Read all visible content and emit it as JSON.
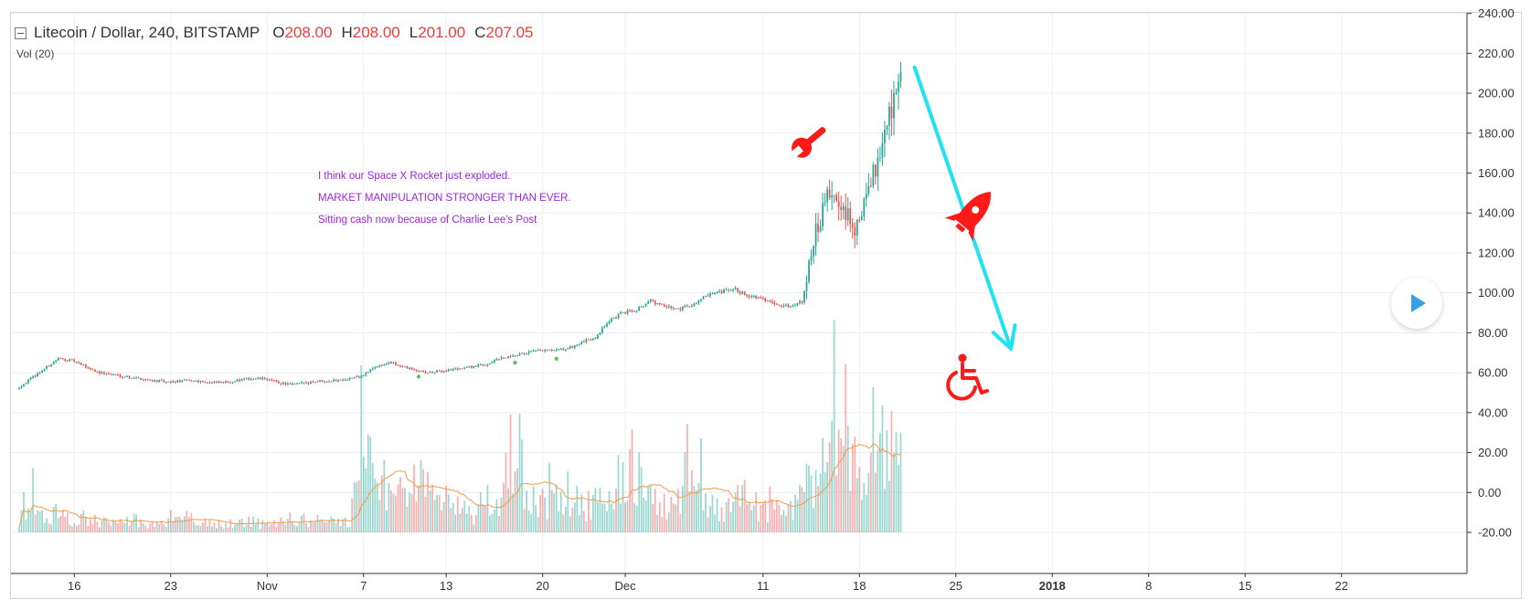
{
  "legend": {
    "symbol": "Litecoin / Dollar, 240, BITSTAMP",
    "open_label": "O",
    "open": "208.00",
    "high_label": "H",
    "high": "208.00",
    "low_label": "L",
    "low": "201.00",
    "close_label": "C",
    "close": "207.05",
    "volume_study": "Vol (20)"
  },
  "notes": [
    "I think our Space X Rocket just exploded.",
    "MARKET MANIPULATION STRONGER THAN EVER.",
    "Sitting cash now because of Charlie Lee's Post"
  ],
  "colors": {
    "up": "#26a69a",
    "down": "#ef5350",
    "arrow": "#1fe3f0",
    "icon": "#ff1a1a",
    "note": "#9c27d6"
  },
  "icons": [
    "wrench-icon",
    "rocket-icon",
    "wheelchair-icon",
    "play-icon"
  ],
  "chart_data": {
    "type": "candlestick",
    "y_ticks": [
      "240.00",
      "220.00",
      "200.00",
      "180.00",
      "160.00",
      "140.00",
      "120.00",
      "100.00",
      "80.00",
      "60.00",
      "40.00",
      "20.00",
      "0.00",
      "-20.00"
    ],
    "y_range": [
      -20,
      240
    ],
    "x_ticks": [
      {
        "label": "16",
        "t": 5
      },
      {
        "label": "23",
        "t": 12
      },
      {
        "label": "Nov",
        "t": 19
      },
      {
        "label": "7",
        "t": 26
      },
      {
        "label": "13",
        "t": 32
      },
      {
        "label": "20",
        "t": 39
      },
      {
        "label": "Dec",
        "t": 45
      },
      {
        "label": "11",
        "t": 55
      },
      {
        "label": "18",
        "t": 62
      },
      {
        "label": "25",
        "t": 69
      },
      {
        "label": "2018",
        "t": 76
      },
      {
        "label": "8",
        "t": 83
      },
      {
        "label": "15",
        "t": 90
      },
      {
        "label": "22",
        "t": 97
      }
    ],
    "x_range": [
      1,
      104
    ],
    "price_path": [
      [
        1,
        52
      ],
      [
        2,
        57
      ],
      [
        3,
        62
      ],
      [
        4,
        67
      ],
      [
        5,
        66
      ],
      [
        6,
        63
      ],
      [
        7,
        60
      ],
      [
        8,
        59
      ],
      [
        9,
        58
      ],
      [
        10,
        57
      ],
      [
        11,
        56
      ],
      [
        12,
        55
      ],
      [
        13,
        56
      ],
      [
        14,
        56
      ],
      [
        15,
        55
      ],
      [
        16,
        55
      ],
      [
        17,
        56
      ],
      [
        18,
        57
      ],
      [
        19,
        57
      ],
      [
        20,
        55
      ],
      [
        21,
        54
      ],
      [
        22,
        55
      ],
      [
        23,
        56
      ],
      [
        24,
        56
      ],
      [
        25,
        57
      ],
      [
        26,
        58
      ],
      [
        27,
        63
      ],
      [
        28,
        65
      ],
      [
        29,
        63
      ],
      [
        30,
        61
      ],
      [
        31,
        60
      ],
      [
        32,
        61
      ],
      [
        33,
        62
      ],
      [
        34,
        63
      ],
      [
        35,
        64
      ],
      [
        36,
        67
      ],
      [
        37,
        68
      ],
      [
        38,
        70
      ],
      [
        39,
        71
      ],
      [
        40,
        71
      ],
      [
        41,
        72
      ],
      [
        42,
        75
      ],
      [
        43,
        78
      ],
      [
        44,
        86
      ],
      [
        45,
        90
      ],
      [
        46,
        92
      ],
      [
        47,
        96
      ],
      [
        48,
        93
      ],
      [
        49,
        92
      ],
      [
        50,
        94
      ],
      [
        51,
        98
      ],
      [
        52,
        100
      ],
      [
        53,
        102
      ],
      [
        54,
        99
      ],
      [
        55,
        97
      ],
      [
        56,
        95
      ],
      [
        57,
        93
      ],
      [
        58,
        96
      ],
      [
        59,
        130
      ],
      [
        60,
        150
      ],
      [
        61,
        140
      ],
      [
        62,
        132
      ],
      [
        63,
        155
      ],
      [
        64,
        182
      ],
      [
        65,
        207
      ]
    ],
    "volume_pattern": [
      [
        1,
        8
      ],
      [
        2,
        14
      ],
      [
        3,
        9
      ],
      [
        4,
        12
      ],
      [
        5,
        6
      ],
      [
        6,
        10
      ],
      [
        7,
        7
      ],
      [
        8,
        5
      ],
      [
        9,
        8
      ],
      [
        10,
        6
      ],
      [
        11,
        5
      ],
      [
        12,
        7
      ],
      [
        13,
        9
      ],
      [
        14,
        6
      ],
      [
        15,
        5
      ],
      [
        16,
        6
      ],
      [
        17,
        5
      ],
      [
        18,
        7
      ],
      [
        19,
        4
      ],
      [
        20,
        6
      ],
      [
        21,
        5
      ],
      [
        22,
        5
      ],
      [
        23,
        8
      ],
      [
        24,
        6
      ],
      [
        25,
        7
      ],
      [
        26,
        48
      ],
      [
        27,
        30
      ],
      [
        28,
        35
      ],
      [
        29,
        28
      ],
      [
        30,
        32
      ],
      [
        31,
        22
      ],
      [
        32,
        18
      ],
      [
        33,
        14
      ],
      [
        34,
        12
      ],
      [
        35,
        10
      ],
      [
        36,
        14
      ],
      [
        37,
        66
      ],
      [
        38,
        22
      ],
      [
        39,
        18
      ],
      [
        40,
        20
      ],
      [
        41,
        12
      ],
      [
        42,
        16
      ],
      [
        43,
        18
      ],
      [
        44,
        20
      ],
      [
        45,
        46
      ],
      [
        46,
        34
      ],
      [
        47,
        22
      ],
      [
        48,
        14
      ],
      [
        49,
        18
      ],
      [
        50,
        36
      ],
      [
        51,
        16
      ],
      [
        52,
        14
      ],
      [
        53,
        26
      ],
      [
        54,
        20
      ],
      [
        55,
        12
      ],
      [
        56,
        14
      ],
      [
        57,
        18
      ],
      [
        58,
        26
      ],
      [
        59,
        40
      ],
      [
        60,
        58
      ],
      [
        61,
        42
      ],
      [
        62,
        38
      ],
      [
        63,
        56
      ],
      [
        64,
        44
      ],
      [
        65,
        52
      ]
    ],
    "annotations": [
      {
        "type": "arrow",
        "from": [
          66,
          213
        ],
        "to": [
          73,
          72
        ],
        "color": "#1fe3f0"
      }
    ],
    "grid": true,
    "y_axis_side": "right"
  }
}
